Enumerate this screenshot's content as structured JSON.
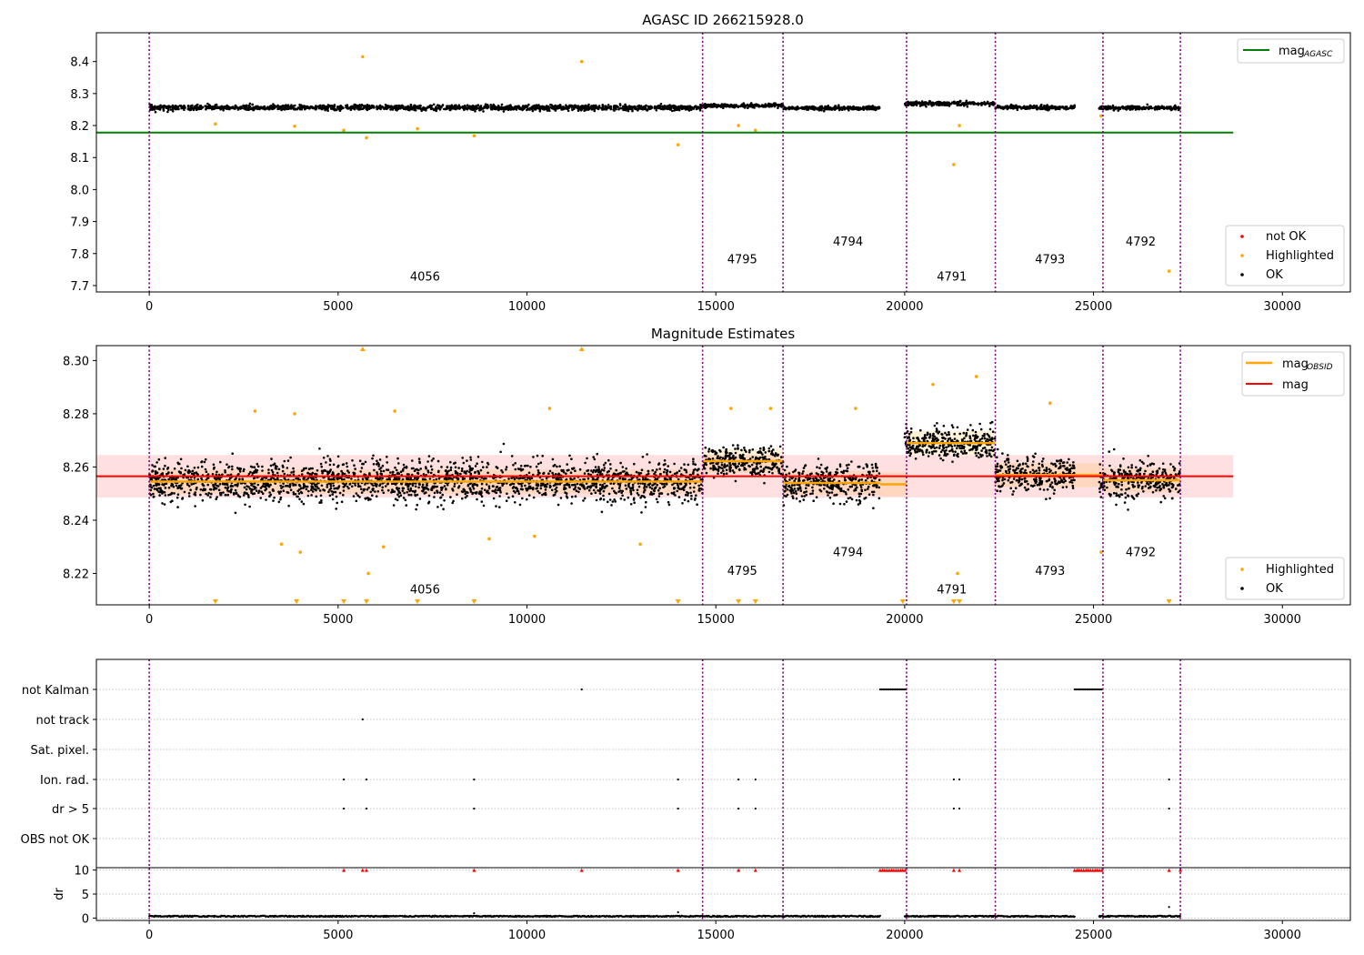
{
  "colors": {
    "axis": "#000000",
    "ok": "#000000",
    "highlighted": "#ffa500",
    "not_ok": "#ff0000",
    "mag_agasc": "#008000",
    "mag": "#ff0000",
    "mag_obsid": "#ffa500",
    "obsid_lines": "#800080",
    "grid": "#b0b0b0"
  },
  "chart_data": [
    {
      "type": "scatter",
      "title": "AGASC ID 266215928.0",
      "xlim": [
        -1400,
        31800
      ],
      "ylim": [
        7.68,
        8.49
      ],
      "xticks": [
        0,
        5000,
        10000,
        15000,
        20000,
        25000,
        30000
      ],
      "yticks": [
        7.7,
        7.8,
        7.9,
        8.0,
        8.1,
        8.2,
        8.3,
        8.4
      ],
      "legend_upper": {
        "position": "top-right",
        "entries": [
          {
            "label": "mag",
            "subscript": "AGASC",
            "color": "#008000"
          }
        ]
      },
      "legend_lower": {
        "position": "bottom-right",
        "entries": [
          {
            "label": "not OK",
            "color": "#ff0000"
          },
          {
            "label": "Highlighted",
            "color": "#ffa500"
          },
          {
            "label": "OK",
            "color": "#000000"
          }
        ]
      },
      "mag_agasc": 8.178,
      "mag_agasc_range": [
        -1400,
        28700
      ],
      "obsid_boundaries": [
        0,
        14650,
        16780,
        20050,
        22400,
        25250,
        27300
      ],
      "obsid_labels": [
        {
          "label": "4056",
          "x": 7300,
          "y": 7.715
        },
        {
          "label": "4795",
          "x": 15700,
          "y": 7.77
        },
        {
          "label": "4794",
          "x": 18500,
          "y": 7.825
        },
        {
          "label": "4791",
          "x": 21250,
          "y": 7.715
        },
        {
          "label": "4793",
          "x": 23850,
          "y": 7.77
        },
        {
          "label": "4792",
          "x": 26250,
          "y": 7.825
        }
      ],
      "segments": [
        {
          "x": [
            0,
            14650
          ],
          "center": 8.256,
          "spread": 0.008
        },
        {
          "x": [
            14650,
            16780
          ],
          "center": 8.262,
          "spread": 0.006
        },
        {
          "x": [
            16780,
            19350
          ],
          "center": 8.254,
          "spread": 0.006
        },
        {
          "x": [
            20000,
            22400
          ],
          "center": 8.269,
          "spread": 0.006
        },
        {
          "x": [
            22400,
            24500
          ],
          "center": 8.257,
          "spread": 0.006
        },
        {
          "x": [
            25150,
            27300
          ],
          "center": 8.255,
          "spread": 0.006
        }
      ],
      "highlighted_points": [
        {
          "x": 5650,
          "y": 8.415
        },
        {
          "x": 11450,
          "y": 8.4
        },
        {
          "x": 1750,
          "y": 8.205
        },
        {
          "x": 3850,
          "y": 8.198
        },
        {
          "x": 5150,
          "y": 8.185
        },
        {
          "x": 5750,
          "y": 8.162
        },
        {
          "x": 7100,
          "y": 8.19
        },
        {
          "x": 8600,
          "y": 8.168
        },
        {
          "x": 14000,
          "y": 8.14
        },
        {
          "x": 15600,
          "y": 8.2
        },
        {
          "x": 16050,
          "y": 8.185
        },
        {
          "x": 21300,
          "y": 8.078
        },
        {
          "x": 21450,
          "y": 8.2
        },
        {
          "x": 27000,
          "y": 7.745
        },
        {
          "x": 25200,
          "y": 8.23
        }
      ]
    },
    {
      "type": "scatter",
      "title": "Magnitude Estimates",
      "xlim": [
        -1400,
        31800
      ],
      "ylim": [
        8.2082,
        8.3056
      ],
      "xticks": [
        0,
        5000,
        10000,
        15000,
        20000,
        25000,
        30000
      ],
      "yticks": [
        8.22,
        8.24,
        8.26,
        8.28,
        8.3
      ],
      "legend_upper": {
        "position": "top-right",
        "entries": [
          {
            "label": "mag",
            "subscript": "OBSID",
            "color": "#ffa500"
          },
          {
            "label": "mag",
            "subscript": "",
            "color": "#ff0000"
          }
        ]
      },
      "legend_lower": {
        "position": "bottom-right",
        "entries": [
          {
            "label": "Highlighted",
            "color": "#ffa500"
          },
          {
            "label": "OK",
            "color": "#000000"
          }
        ]
      },
      "mag": 8.2565,
      "mag_band": [
        8.2485,
        8.2645
      ],
      "mag_range": [
        -1400,
        28700
      ],
      "obsid_boundaries": [
        0,
        14650,
        16780,
        20050,
        22400,
        25250,
        27300
      ],
      "obsid_labels": [
        {
          "label": "4056",
          "x": 7300,
          "y": 8.2125
        },
        {
          "label": "4795",
          "x": 15700,
          "y": 8.2195
        },
        {
          "label": "4794",
          "x": 18500,
          "y": 8.2265
        },
        {
          "label": "4791",
          "x": 21250,
          "y": 8.2125
        },
        {
          "label": "4793",
          "x": 23850,
          "y": 8.2195
        },
        {
          "label": "4792",
          "x": 26250,
          "y": 8.2265
        }
      ],
      "mag_obsid": [
        {
          "x": [
            0,
            14650
          ],
          "y": 8.2545
        },
        {
          "x": [
            14650,
            16780
          ],
          "y": 8.2622
        },
        {
          "x": [
            16780,
            19350
          ],
          "y": 8.254
        },
        {
          "x": [
            19350,
            20050
          ],
          "y": 8.2535
        },
        {
          "x": [
            20050,
            22400
          ],
          "y": 8.269
        },
        {
          "x": [
            22400,
            24500
          ],
          "y": 8.257
        },
        {
          "x": [
            24500,
            25250
          ],
          "y": 8.257
        },
        {
          "x": [
            25250,
            27300
          ],
          "y": 8.255
        }
      ],
      "segments": [
        {
          "x": [
            0,
            14650
          ],
          "center": 8.2545,
          "spread": 0.0075
        },
        {
          "x": [
            14650,
            16780
          ],
          "center": 8.262,
          "spread": 0.0055
        },
        {
          "x": [
            16780,
            19350
          ],
          "center": 8.254,
          "spread": 0.0065
        },
        {
          "x": [
            20000,
            22400
          ],
          "center": 8.269,
          "spread": 0.006
        },
        {
          "x": [
            22400,
            24500
          ],
          "center": 8.257,
          "spread": 0.0065
        },
        {
          "x": [
            25150,
            27300
          ],
          "center": 8.255,
          "spread": 0.0065
        }
      ],
      "highlighted_points": [
        {
          "x": 2800,
          "y": 8.281
        },
        {
          "x": 3850,
          "y": 8.28
        },
        {
          "x": 6500,
          "y": 8.281
        },
        {
          "x": 10600,
          "y": 8.282
        },
        {
          "x": 15400,
          "y": 8.282
        },
        {
          "x": 16450,
          "y": 8.282
        },
        {
          "x": 18700,
          "y": 8.282
        },
        {
          "x": 20750,
          "y": 8.291
        },
        {
          "x": 21900,
          "y": 8.294
        },
        {
          "x": 23850,
          "y": 8.284
        },
        {
          "x": 3500,
          "y": 8.231
        },
        {
          "x": 4000,
          "y": 8.228
        },
        {
          "x": 5800,
          "y": 8.22
        },
        {
          "x": 6200,
          "y": 8.23
        },
        {
          "x": 9000,
          "y": 8.233
        },
        {
          "x": 10200,
          "y": 8.234
        },
        {
          "x": 13000,
          "y": 8.231
        },
        {
          "x": 21400,
          "y": 8.22
        },
        {
          "x": 25200,
          "y": 8.228
        }
      ],
      "clipped_up": [
        5650,
        11450
      ],
      "clipped_down": [
        1750,
        3900,
        5150,
        5750,
        7100,
        8600,
        14000,
        15600,
        16050,
        19950,
        21300,
        21450,
        27000
      ]
    },
    {
      "type": "scatter",
      "xlim": [
        -1400,
        31800
      ],
      "xticks": [
        0,
        5000,
        10000,
        15000,
        20000,
        25000,
        30000
      ],
      "flag_rows": [
        "not Kalman",
        "not track",
        "Sat. pixel.",
        "Ion. rad.",
        "dr > 5",
        "OBS not OK"
      ],
      "flags": {
        "not Kalman": {
          "points": [
            11450
          ],
          "ranges": [
            [
              19350,
              20050
            ],
            [
              24500,
              25250
            ]
          ]
        },
        "not track": {
          "points": [
            5650
          ],
          "ranges": []
        },
        "Sat. pixel.": {
          "points": [],
          "ranges": []
        },
        "Ion. rad.": {
          "points": [
            5150,
            5750,
            8600,
            14000,
            15600,
            16050,
            21300,
            21450,
            27000
          ],
          "ranges": []
        },
        "dr > 5": {
          "points": [
            5150,
            5750,
            8600,
            14000,
            15600,
            16050,
            21300,
            21450,
            27000
          ],
          "ranges": []
        },
        "OBS not OK": {
          "points": [],
          "ranges": []
        }
      },
      "dr_ylabel": "dr",
      "dr_ylim": [
        -0.5,
        10.5
      ],
      "dr_yticks": [
        0,
        5,
        10
      ],
      "dr_clipped": [
        5150,
        5650,
        5750,
        8600,
        11450,
        14000,
        15600,
        16050,
        21300,
        21450,
        27000,
        27300
      ],
      "dr_clipped_ranges": [
        [
          19350,
          20050
        ],
        [
          24500,
          25250
        ]
      ],
      "dr_outliers": [
        {
          "x": 27000,
          "y": 2.3
        },
        {
          "x": 14000,
          "y": 1.2
        },
        {
          "x": 8600,
          "y": 1.0
        }
      ],
      "dr_segments": [
        [
          0,
          19350
        ],
        [
          20000,
          24500
        ],
        [
          25150,
          27300
        ]
      ],
      "obsid_boundaries": [
        0,
        14650,
        16780,
        20050,
        22400,
        25250,
        27300
      ]
    }
  ]
}
